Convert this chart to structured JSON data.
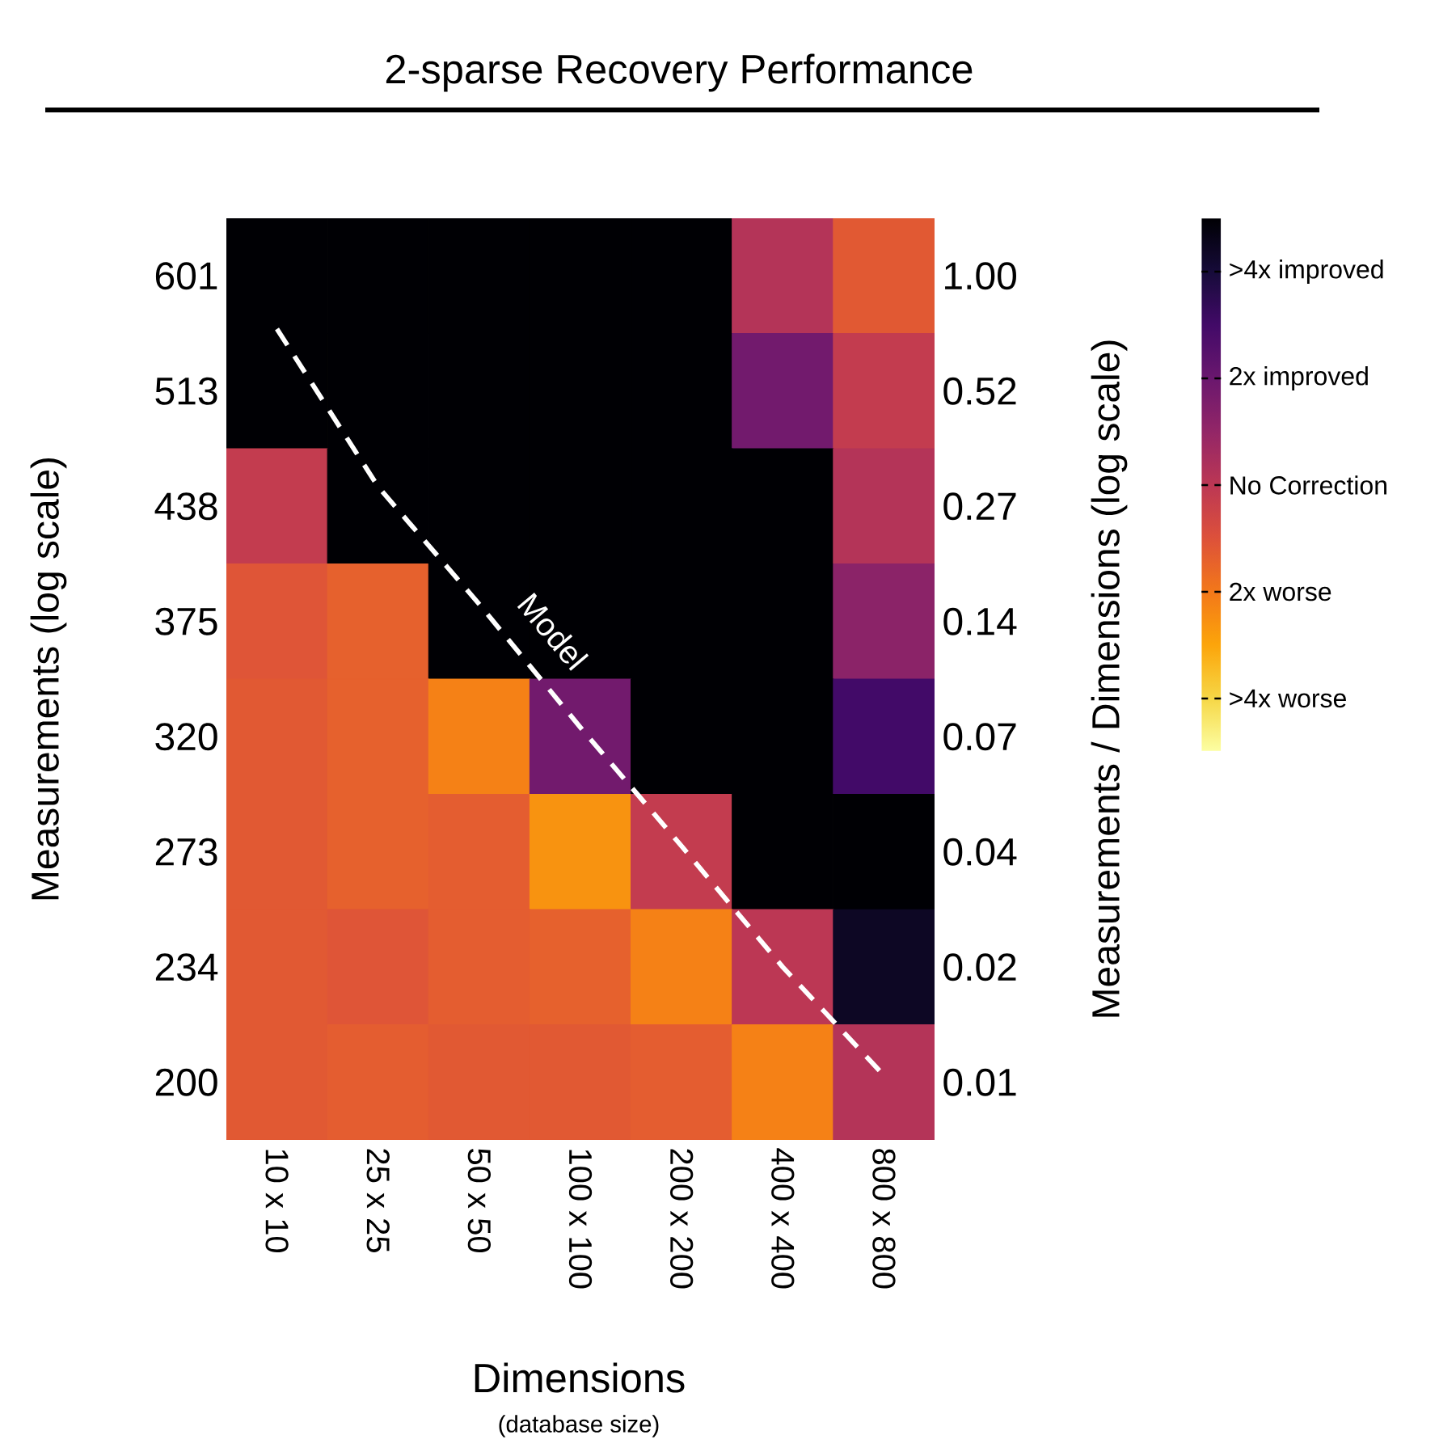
{
  "chart_data": {
    "type": "heatmap",
    "title": "2-sparse Recovery Performance",
    "xlabel": "Dimensions",
    "ylabel": "Measurements (log scale)",
    "y2label": "Measurements / Dimensions (log scale)",
    "annotations": [
      "(database size)"
    ],
    "series": [
      {
        "type": "line",
        "name": "Model",
        "color": "#ffffff",
        "line_style": "dashed",
        "values": [
          0.46,
          1.83,
          2.85,
          3.92,
          4.95,
          6.0,
          6.94
        ]
      }
    ],
    "categories": [
      "10 x 10",
      "25 x 25",
      "50 x 50",
      "100 x 100",
      "200 x 200",
      "400 x 400",
      "800 x 800"
    ],
    "y_categories": [
      "601",
      "513",
      "438",
      "375",
      "320",
      "273",
      "234",
      "200"
    ],
    "y2_categories": [
      "1.00",
      "0.52",
      "0.27",
      "0.14",
      "0.07",
      "0.04",
      "0.02",
      "0.01"
    ],
    "cells": [
      [
        5,
        5,
        5,
        5,
        5,
        0.2,
        -1.2
      ],
      [
        5,
        5,
        5,
        5,
        5,
        1.8,
        -0.2
      ],
      [
        -0.2,
        5,
        5,
        5,
        5,
        5,
        0.2
      ],
      [
        -1.1,
        -1.4,
        5,
        5,
        5,
        5,
        1.2
      ],
      [
        -1.2,
        -1.4,
        -2.2,
        1.8,
        5,
        5,
        3
      ],
      [
        -1.2,
        -1.4,
        -1.3,
        -2.6,
        -0.2,
        5,
        5
      ],
      [
        -1.2,
        -1.1,
        -1.3,
        -1.4,
        -2.2,
        0,
        4.4
      ],
      [
        -1.2,
        -1.3,
        -1.2,
        -1.2,
        -1.3,
        -2.2,
        0.2
      ]
    ],
    "clim": [
      -5,
      5
    ],
    "cticks": [
      {
        "value": 4,
        "label": ">4x improved"
      },
      {
        "value": 2,
        "label": "2x improved"
      },
      {
        "value": 0,
        "label": "No Correction"
      },
      {
        "value": -2,
        "label": "2x worse"
      },
      {
        "value": -4,
        "label": ">4x worse"
      }
    ]
  }
}
